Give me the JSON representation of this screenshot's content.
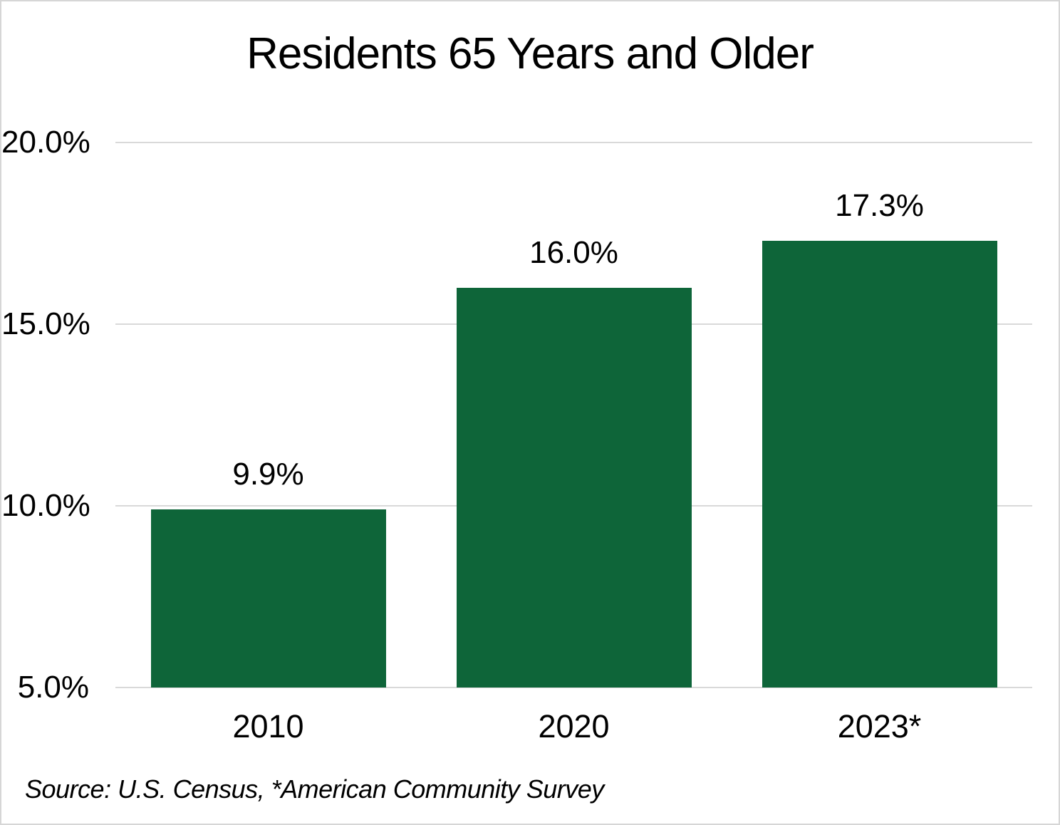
{
  "chart_data": {
    "type": "bar",
    "title": "Residents 65 Years and Older",
    "categories": [
      "2010",
      "2020",
      "2023*"
    ],
    "values": [
      9.9,
      16.0,
      17.3
    ],
    "value_labels": [
      "9.9%",
      "16.0%",
      "17.3%"
    ],
    "xlabel": "",
    "ylabel": "",
    "ylim": [
      5,
      20
    ],
    "yticks": [
      {
        "value": 20,
        "label": "20.0%"
      },
      {
        "value": 15,
        "label": "15.0%"
      },
      {
        "value": 10,
        "label": "10.0%"
      },
      {
        "value": 5,
        "label": "5.0%"
      }
    ],
    "grid": true,
    "legend_position": "none",
    "source": "Source: U.S. Census, *American Community Survey",
    "colors": {
      "bar": "#0E6539",
      "gridline": "#D9D9D9",
      "text": "#000000",
      "border": "#D6D6D6",
      "background": "#FFFFFF"
    }
  }
}
